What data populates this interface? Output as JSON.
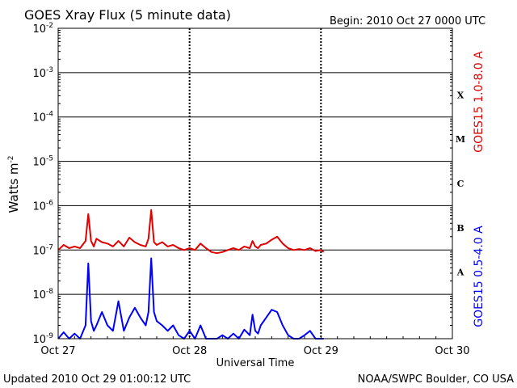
{
  "chart_data": {
    "type": "line",
    "title": "GOES Xray Flux (5 minute data)",
    "begin_text": "Begin:  2010 Oct 27 0000 UTC",
    "xlabel": "Universal Time",
    "ylabel": "Watts m",
    "ylabel_exponent": "-2",
    "y_scale": "log",
    "ylim": [
      1e-09,
      0.01
    ],
    "y_ticks": [
      {
        "base": "10",
        "exp": "-2",
        "value": 0.01
      },
      {
        "base": "10",
        "exp": "-3",
        "value": 0.001
      },
      {
        "base": "10",
        "exp": "-4",
        "value": 0.0001
      },
      {
        "base": "10",
        "exp": "-5",
        "value": 1e-05
      },
      {
        "base": "10",
        "exp": "-6",
        "value": 1e-06
      },
      {
        "base": "10",
        "exp": "-7",
        "value": 1e-07
      },
      {
        "base": "10",
        "exp": "-8",
        "value": 1e-08
      },
      {
        "base": "10",
        "exp": "-9",
        "value": 1e-09
      }
    ],
    "xlim": [
      0,
      72
    ],
    "x_ticks": [
      {
        "label": "Oct 27",
        "hours": 0
      },
      {
        "label": "Oct 28",
        "hours": 24
      },
      {
        "label": "Oct 29",
        "hours": 48
      },
      {
        "label": "Oct 30",
        "hours": 72
      }
    ],
    "flare_classes": [
      {
        "label": "X",
        "value": 0.0001
      },
      {
        "label": "M",
        "value": 1e-05
      },
      {
        "label": "C",
        "value": 1e-06
      },
      {
        "label": "B",
        "value": 1e-07
      },
      {
        "label": "A",
        "value": 1e-08
      }
    ],
    "grid": true,
    "series": [
      {
        "name": "GOES15 1.0-8.0 A",
        "color": "#e00000",
        "x_hours": [
          0,
          1,
          2,
          3,
          4,
          5,
          5.5,
          6,
          6.5,
          7,
          8,
          9,
          10,
          11,
          12,
          13,
          14,
          15,
          16,
          16.5,
          17,
          17.5,
          18,
          19,
          20,
          21,
          22,
          23,
          24,
          25,
          26,
          27,
          28,
          29,
          30,
          31,
          32,
          33,
          34,
          35,
          35.5,
          36,
          36.5,
          37,
          38,
          39,
          40,
          41,
          42,
          43,
          44,
          45,
          46,
          47,
          48,
          48.5
        ],
        "values": [
          1e-07,
          1.3e-07,
          1.1e-07,
          1.2e-07,
          1.1e-07,
          1.6e-07,
          6.5e-07,
          1.6e-07,
          1.2e-07,
          1.8e-07,
          1.5e-07,
          1.4e-07,
          1.2e-07,
          1.6e-07,
          1.2e-07,
          1.9e-07,
          1.5e-07,
          1.3e-07,
          1.2e-07,
          1.8e-07,
          8e-07,
          1.5e-07,
          1.3e-07,
          1.5e-07,
          1.2e-07,
          1.3e-07,
          1.1e-07,
          1e-07,
          1.1e-07,
          1e-07,
          1.4e-07,
          1.1e-07,
          9e-08,
          8.5e-08,
          9e-08,
          1e-07,
          1.1e-07,
          1e-07,
          1.2e-07,
          1.1e-07,
          1.6e-07,
          1.2e-07,
          1.1e-07,
          1.3e-07,
          1.4e-07,
          1.7e-07,
          2e-07,
          1.4e-07,
          1.1e-07,
          1e-07,
          1.05e-07,
          1e-07,
          1.1e-07,
          9.5e-08,
          1e-07,
          9e-08
        ]
      },
      {
        "name": "GOES15 0.5-4.0 A",
        "color": "#0000ff",
        "x_hours": [
          0,
          1,
          2,
          3,
          4,
          5,
          5.5,
          6,
          6.5,
          7,
          8,
          9,
          10,
          11,
          12,
          13,
          14,
          15,
          16,
          16.5,
          17,
          17.5,
          18,
          19,
          20,
          21,
          22,
          23,
          24,
          25,
          26,
          27,
          28,
          29,
          30,
          31,
          32,
          33,
          34,
          35,
          35.5,
          36,
          36.5,
          37,
          38,
          39,
          40,
          41,
          42,
          43,
          44,
          45,
          46,
          47,
          48,
          48.5
        ],
        "values": [
          1e-09,
          1.4e-09,
          1e-09,
          1.3e-09,
          1e-09,
          2e-09,
          5e-08,
          2.5e-09,
          1.5e-09,
          2e-09,
          4e-09,
          2e-09,
          1.5e-09,
          7e-09,
          1.5e-09,
          3e-09,
          5e-09,
          3e-09,
          2e-09,
          4e-09,
          6.5e-08,
          4e-09,
          2.5e-09,
          2e-09,
          1.5e-09,
          2e-09,
          1.2e-09,
          1e-09,
          1.5e-09,
          1e-09,
          2e-09,
          1e-09,
          1e-09,
          1e-09,
          1.2e-09,
          1e-09,
          1.3e-09,
          1e-09,
          1.6e-09,
          1.2e-09,
          3.5e-09,
          1.5e-09,
          1.3e-09,
          2e-09,
          3e-09,
          4.5e-09,
          4e-09,
          2e-09,
          1.2e-09,
          1e-09,
          1e-09,
          1.2e-09,
          1.5e-09,
          1e-09,
          1e-09,
          1e-09
        ]
      }
    ]
  },
  "footer": {
    "updated": "Updated 2010 Oct 29 01:00:12 UTC",
    "source": "NOAA/SWPC Boulder, CO USA"
  }
}
